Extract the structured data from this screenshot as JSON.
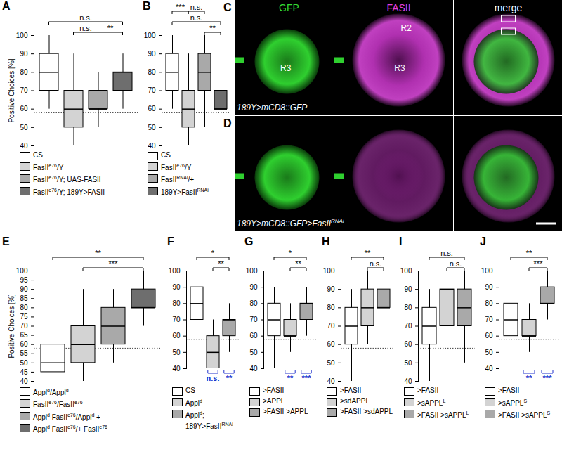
{
  "chart_data": [
    {
      "panel": "A",
      "type": "box",
      "y_label": "Positive Choices [%]",
      "ylim": [
        40,
        100
      ],
      "yticks": [
        40,
        50,
        60,
        70,
        80,
        90,
        100
      ],
      "tick_labels": "y",
      "legend": "bottom",
      "reference_line": 58,
      "categories": [
        [
          "CS"
        ],
        [
          "FasII",
          {
            "sup": "e76"
          },
          "/Y"
        ],
        [
          "FasII",
          {
            "sup": "e76"
          },
          "/Y; UAS-FASII"
        ],
        [
          "FasII",
          {
            "sup": "e76"
          },
          "/Y; 189Y>FASII"
        ]
      ],
      "colors": [
        "#ffffff",
        "#d3d3d3",
        "#a9a9a9",
        "#6e6e6e"
      ],
      "boxes": [
        {
          "min": 60,
          "q1": 70,
          "median": 80,
          "q3": 90,
          "max": 100
        },
        {
          "min": 40,
          "q1": 50,
          "median": 60,
          "q3": 70,
          "max": 90
        },
        {
          "min": 50,
          "q1": 60,
          "median": 60,
          "q3": 70,
          "max": 80
        },
        {
          "min": 60,
          "q1": 70,
          "median": 80,
          "q3": 80,
          "max": 90
        }
      ],
      "comparisons": [
        {
          "from": 0,
          "to": 3,
          "level": 2,
          "label": "n.s."
        },
        {
          "from": 1,
          "to": 2,
          "level": 1,
          "label": "n.s."
        },
        {
          "from": 2,
          "to": 3,
          "level": 1,
          "label": "**"
        }
      ],
      "chance_tests": []
    },
    {
      "panel": "B",
      "type": "box",
      "ylim": [
        40,
        100
      ],
      "yticks": [
        40,
        50,
        60,
        70,
        80,
        90,
        100
      ],
      "tick_labels": "y",
      "legend": "bottom",
      "reference_line": 58,
      "categories": [
        [
          "CS"
        ],
        [
          "FasII",
          {
            "sup": "e76"
          },
          "/Y"
        ],
        [
          "FasII",
          {
            "sup": "RNAi"
          },
          "/+"
        ],
        [
          "189Y>FasII",
          {
            "sup": "RNAi"
          }
        ]
      ],
      "colors": [
        "#ffffff",
        "#d3d3d3",
        "#a9a9a9",
        "#6e6e6e"
      ],
      "boxes": [
        {
          "min": 60,
          "q1": 70,
          "median": 80,
          "q3": 90,
          "max": 100
        },
        {
          "min": 40,
          "q1": 50,
          "median": 60,
          "q3": 70,
          "max": 90
        },
        {
          "min": 50,
          "q1": 70,
          "median": 80,
          "q3": 90,
          "max": 100
        },
        {
          "min": 50,
          "q1": 60,
          "median": 60,
          "q3": 70,
          "max": 80
        }
      ],
      "comparisons": [
        {
          "from": 0,
          "to": 1,
          "level": 3,
          "label": "***"
        },
        {
          "from": 1,
          "to": 2,
          "level": 3,
          "label": "n.s."
        },
        {
          "from": 0,
          "to": 3,
          "level": 2,
          "label": "n.s."
        },
        {
          "from": 2,
          "to": 3,
          "level": 1,
          "label": "**"
        }
      ],
      "chance_tests": []
    },
    {
      "panel": "E",
      "type": "box",
      "y_label": "Positive Choices [%]",
      "ylim": [
        40,
        100
      ],
      "yticks": [
        40,
        45,
        50,
        55,
        60,
        65,
        70,
        75,
        80,
        85,
        90,
        95,
        100
      ],
      "tick_labels": "y",
      "legend": "bottom",
      "reference_line": 58,
      "categories": [
        [
          "Appl",
          {
            "sup": "d"
          },
          "/Appl",
          {
            "sup": "d"
          }
        ],
        [
          "FasII",
          {
            "sup": "e76"
          },
          "/FasII",
          {
            "sup": "e76"
          }
        ],
        [
          "Appl",
          {
            "sup": "d"
          },
          " FasII",
          {
            "sup": "e76"
          },
          "/Appl",
          {
            "sup": "d"
          },
          " +"
        ],
        [
          "Appl",
          {
            "sup": "d"
          },
          " FasII",
          {
            "sup": "e76"
          },
          "/+ FasII",
          {
            "sup": "e76"
          }
        ]
      ],
      "colors": [
        "#ffffff",
        "#d3d3d3",
        "#a9a9a9",
        "#6e6e6e"
      ],
      "boxes": [
        {
          "min": 40,
          "q1": 45,
          "median": 50,
          "q3": 60,
          "max": 70
        },
        {
          "min": 40,
          "q1": 50,
          "median": 60,
          "q3": 70,
          "max": 90
        },
        {
          "min": 50,
          "q1": 60,
          "median": 70,
          "q3": 80,
          "max": 90
        },
        {
          "min": 70,
          "q1": 80,
          "median": 80,
          "q3": 90,
          "max": 100
        }
      ],
      "comparisons": [
        {
          "from": 0,
          "to": 3,
          "level": 2,
          "label": "**"
        },
        {
          "from": 1,
          "to": 3,
          "level": 1,
          "label": "***"
        }
      ],
      "chance_tests": []
    },
    {
      "panel": "F",
      "type": "box",
      "ylim": [
        40,
        100
      ],
      "yticks": [
        40,
        50,
        60,
        70,
        80,
        90,
        100
      ],
      "tick_labels": "y",
      "legend": "bottom",
      "reference_line": 58,
      "categories": [
        [
          "CS"
        ],
        [
          "Appl",
          {
            "sup": "d"
          }
        ],
        [
          "Appl",
          {
            "sup": "d"
          },
          "; 189Y>FasII",
          {
            "sup": "RNAi"
          }
        ]
      ],
      "colors": [
        "#ffffff",
        "#d3d3d3",
        "#a9a9a9"
      ],
      "boxes": [
        {
          "min": 60,
          "q1": 70,
          "median": 80,
          "q3": 90,
          "max": 100
        },
        {
          "min": 40,
          "q1": 40,
          "median": 50,
          "q3": 60,
          "max": 70
        },
        {
          "min": 50,
          "q1": 60,
          "median": 70,
          "q3": 70,
          "max": 80
        }
      ],
      "comparisons": [
        {
          "from": 0,
          "to": 2,
          "level": 2,
          "label": "*"
        },
        {
          "from": 1,
          "to": 2,
          "level": 1,
          "label": "**"
        }
      ],
      "chance_tests": [
        {
          "index": 1,
          "label": "n.s."
        },
        {
          "index": 2,
          "label": "**"
        }
      ]
    },
    {
      "panel": "G",
      "type": "box",
      "ylim": [
        40,
        100
      ],
      "yticks": [
        40,
        50,
        60,
        70,
        80,
        90,
        100
      ],
      "tick_labels": "y",
      "legend": "bottom",
      "reference_line": 58,
      "categories": [
        [
          ">FASII"
        ],
        [
          ">APPL"
        ],
        [
          ">FASII >APPL"
        ]
      ],
      "colors": [
        "#ffffff",
        "#d3d3d3",
        "#a9a9a9"
      ],
      "boxes": [
        {
          "min": 40,
          "q1": 60,
          "median": 70,
          "q3": 80,
          "max": 90
        },
        {
          "min": 50,
          "q1": 60,
          "median": 60,
          "q3": 70,
          "max": 80
        },
        {
          "min": 60,
          "q1": 70,
          "median": 80,
          "q3": 80,
          "max": 90
        }
      ],
      "comparisons": [
        {
          "from": 0,
          "to": 2,
          "level": 2,
          "label": "*"
        },
        {
          "from": 1,
          "to": 2,
          "level": 1,
          "label": "**"
        }
      ],
      "chance_tests": [
        {
          "index": 1,
          "label": "**"
        },
        {
          "index": 2,
          "label": "***"
        }
      ]
    },
    {
      "panel": "H",
      "type": "box",
      "ylim": [
        40,
        100
      ],
      "yticks": [
        40,
        50,
        60,
        70,
        80,
        90,
        100
      ],
      "tick_labels": "y",
      "legend": "bottom",
      "reference_line": 58,
      "categories": [
        [
          ">FASII"
        ],
        [
          ">sdAPPL"
        ],
        [
          ">FASII >sdAPPL"
        ]
      ],
      "colors": [
        "#ffffff",
        "#d3d3d3",
        "#a9a9a9"
      ],
      "boxes": [
        {
          "min": 40,
          "q1": 60,
          "median": 70,
          "q3": 80,
          "max": 90
        },
        {
          "min": 60,
          "q1": 70,
          "median": 80,
          "q3": 90,
          "max": 100
        },
        {
          "min": 70,
          "q1": 80,
          "median": 80,
          "q3": 90,
          "max": 100
        }
      ],
      "comparisons": [
        {
          "from": 0,
          "to": 2,
          "level": 2,
          "label": "**"
        },
        {
          "from": 1,
          "to": 2,
          "level": 1,
          "label": "n.s."
        }
      ],
      "chance_tests": []
    },
    {
      "panel": "I",
      "type": "box",
      "ylim": [
        40,
        100
      ],
      "yticks": [
        40,
        50,
        60,
        70,
        80,
        90,
        100
      ],
      "tick_labels": "y",
      "legend": "bottom",
      "reference_line": 58,
      "categories": [
        [
          ">FASII"
        ],
        [
          ">sAPPL",
          {
            "sup": "L"
          }
        ],
        [
          ">FASII >sAPPL",
          {
            "sup": "L"
          }
        ]
      ],
      "colors": [
        "#ffffff",
        "#d3d3d3",
        "#a9a9a9"
      ],
      "boxes": [
        {
          "min": 40,
          "q1": 60,
          "median": 70,
          "q3": 80,
          "max": 90
        },
        {
          "min": 60,
          "q1": 70,
          "median": 90,
          "q3": 90,
          "max": 100
        },
        {
          "min": 50,
          "q1": 70,
          "median": 80,
          "q3": 90,
          "max": 100
        }
      ],
      "comparisons": [
        {
          "from": 0,
          "to": 2,
          "level": 2,
          "label": "n.s."
        },
        {
          "from": 1,
          "to": 2,
          "level": 1,
          "label": "n.s."
        }
      ],
      "chance_tests": []
    },
    {
      "panel": "J",
      "type": "box",
      "ylim": [
        40,
        100
      ],
      "yticks": [
        40,
        50,
        60,
        70,
        80,
        90,
        100
      ],
      "tick_labels": "y",
      "legend": "bottom",
      "reference_line": 58,
      "categories": [
        [
          ">FASII"
        ],
        [
          ">sAPPL",
          {
            "sup": "S"
          }
        ],
        [
          ">FASII >sAPPL",
          {
            "sup": "S"
          }
        ]
      ],
      "colors": [
        "#ffffff",
        "#d3d3d3",
        "#a9a9a9"
      ],
      "boxes": [
        {
          "min": 40,
          "q1": 60,
          "median": 70,
          "q3": 80,
          "max": 90
        },
        {
          "min": 50,
          "q1": 60,
          "median": 60,
          "q3": 70,
          "max": 80
        },
        {
          "min": 70,
          "q1": 80,
          "median": 80,
          "q3": 90,
          "max": 100
        }
      ],
      "comparisons": [
        {
          "from": 0,
          "to": 2,
          "level": 2,
          "label": "**"
        },
        {
          "from": 1,
          "to": 2,
          "level": 1,
          "label": "***"
        }
      ],
      "chance_tests": [
        {
          "index": 1,
          "label": "**"
        },
        {
          "index": 2,
          "label": "***"
        }
      ]
    }
  ],
  "image_panels": [
    {
      "panel": "C",
      "channel_titles": [
        {
          "text": "GFP",
          "color": "#33dd33"
        },
        {
          "text": "FASII",
          "color": "#e040e0"
        },
        {
          "text": "merge",
          "color": "#ffffff"
        }
      ],
      "region_labels": [
        [
          "R3"
        ],
        [
          "R2",
          "R3"
        ],
        []
      ],
      "genotype": [
        "189Y>mCD8::GFP"
      ]
    },
    {
      "panel": "D",
      "channel_titles": [],
      "region_labels": [
        [],
        [],
        []
      ],
      "genotype": [
        "189Y>mCD8::GFP>FasII",
        {
          "sup": "RNAi"
        }
      ]
    }
  ]
}
